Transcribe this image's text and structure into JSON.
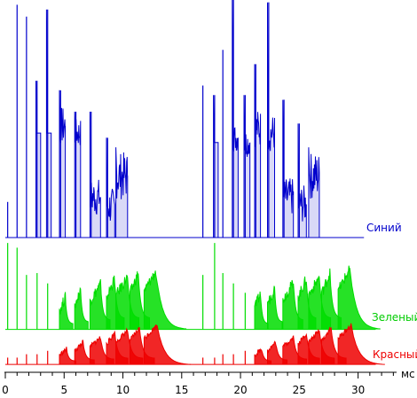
{
  "chart_data": {
    "type": "line",
    "title": "",
    "xlabel": "мс",
    "ylabel": "",
    "xlim": [
      0,
      33.2
    ],
    "x_ticks": [
      0,
      5,
      10,
      15,
      20,
      25,
      30
    ],
    "x_tick_labels": [
      "0",
      "5",
      "10",
      "15",
      "20",
      "25",
      "30"
    ],
    "grid": false,
    "legend": "inline-right",
    "series": [
      {
        "name": "Синий",
        "color": "#0000cc",
        "baseline": 0,
        "spikes": [
          {
            "x": 0.2,
            "y": 0.15,
            "w": 0.05
          },
          {
            "x": 1.0,
            "y": 0.98,
            "w": 0.05
          },
          {
            "x": 1.8,
            "y": 0.93,
            "w": 0.05
          },
          {
            "x": 2.7,
            "y": 0.66,
            "w": 0.05
          },
          {
            "x": 3.6,
            "y": 0.96,
            "w": 0.05
          },
          {
            "x": 4.7,
            "y": 0.62,
            "w": 0.05
          },
          {
            "x": 6.0,
            "y": 0.53,
            "w": 0.05
          },
          {
            "x": 7.3,
            "y": 0.53,
            "w": 0.05
          },
          {
            "x": 8.7,
            "y": 0.42,
            "w": 0.05
          },
          {
            "x": 16.8,
            "y": 0.64,
            "w": 0.05
          },
          {
            "x": 17.8,
            "y": 0.6,
            "w": 0.05
          },
          {
            "x": 18.5,
            "y": 0.79,
            "w": 0.05
          },
          {
            "x": 19.4,
            "y": 1.0,
            "w": 0.05
          },
          {
            "x": 20.4,
            "y": 0.6,
            "w": 0.05
          },
          {
            "x": 21.3,
            "y": 0.73,
            "w": 0.05
          },
          {
            "x": 22.4,
            "y": 0.99,
            "w": 0.05
          },
          {
            "x": 23.7,
            "y": 0.58,
            "w": 0.05
          },
          {
            "x": 25.0,
            "y": 0.48,
            "w": 0.05
          }
        ],
        "pulses": [
          {
            "x0": 2.6,
            "x1": 3.0,
            "level": 0.44,
            "jitter": 0.0,
            "peak": 0.66
          },
          {
            "x0": 3.5,
            "x1": 3.9,
            "level": 0.44,
            "jitter": 0.0,
            "peak": 0.96
          },
          {
            "x0": 4.6,
            "x1": 5.1,
            "level": 0.47,
            "jitter": 0.08,
            "peak": 0.62
          },
          {
            "x0": 5.9,
            "x1": 6.4,
            "level": 0.44,
            "jitter": 0.06,
            "peak": 0.53
          },
          {
            "x0": 7.2,
            "x1": 8.1,
            "level": 0.17,
            "jitter": 0.08,
            "peak": 0.53
          },
          {
            "x0": 8.6,
            "x1": 9.3,
            "level": 0.13,
            "jitter": 0.08,
            "peak": 0.42
          },
          {
            "x0": 9.4,
            "x1": 10.4,
            "level": 0.26,
            "jitter": 0.1,
            "peak": 0.38
          },
          {
            "x0": 17.7,
            "x1": 18.1,
            "level": 0.4,
            "jitter": 0.0,
            "peak": 0.6
          },
          {
            "x0": 19.3,
            "x1": 19.8,
            "level": 0.42,
            "jitter": 0.06,
            "peak": 1.0
          },
          {
            "x0": 20.3,
            "x1": 20.8,
            "level": 0.4,
            "jitter": 0.06,
            "peak": 0.6
          },
          {
            "x0": 21.2,
            "x1": 21.7,
            "level": 0.46,
            "jitter": 0.08,
            "peak": 0.73
          },
          {
            "x0": 22.3,
            "x1": 22.9,
            "level": 0.44,
            "jitter": 0.08,
            "peak": 0.99
          },
          {
            "x0": 23.6,
            "x1": 24.5,
            "level": 0.17,
            "jitter": 0.08,
            "peak": 0.58
          },
          {
            "x0": 24.9,
            "x1": 25.6,
            "level": 0.14,
            "jitter": 0.08,
            "peak": 0.48
          },
          {
            "x0": 25.8,
            "x1": 26.7,
            "level": 0.26,
            "jitter": 0.1,
            "peak": 0.38
          }
        ]
      },
      {
        "name": "Зеленый",
        "color": "#00dd00",
        "baseline": 0.06,
        "spikes": [
          {
            "x": 0.2,
            "y": 0.98,
            "w": 0.04
          },
          {
            "x": 1.0,
            "y": 0.93,
            "w": 0.04
          },
          {
            "x": 1.8,
            "y": 0.64,
            "w": 0.04
          },
          {
            "x": 2.7,
            "y": 0.66,
            "w": 0.04
          },
          {
            "x": 3.6,
            "y": 0.55,
            "w": 0.04
          },
          {
            "x": 16.8,
            "y": 0.64,
            "w": 0.04
          },
          {
            "x": 17.8,
            "y": 0.98,
            "w": 0.04
          },
          {
            "x": 18.5,
            "y": 0.66,
            "w": 0.04
          },
          {
            "x": 19.4,
            "y": 0.55,
            "w": 0.04
          },
          {
            "x": 20.4,
            "y": 0.45,
            "w": 0.04
          }
        ],
        "pulses": [
          {
            "x0": 4.6,
            "x1": 5.1,
            "level": 0.4,
            "decay_to": 0.12,
            "tau": 0.4
          },
          {
            "x0": 5.9,
            "x1": 6.4,
            "level": 0.48,
            "decay_to": 0.14,
            "tau": 0.4
          },
          {
            "x0": 7.2,
            "x1": 8.1,
            "level": 0.54,
            "decay_to": 0.16,
            "tau": 0.5
          },
          {
            "x0": 8.6,
            "x1": 9.3,
            "level": 0.6,
            "decay_to": 0.18,
            "tau": 0.5
          },
          {
            "x0": 9.4,
            "x1": 10.4,
            "level": 0.62,
            "decay_to": 0.18,
            "tau": 0.6
          },
          {
            "x0": 10.6,
            "x1": 11.3,
            "level": 0.66,
            "decay_to": 0.18,
            "tau": 0.6
          },
          {
            "x0": 11.8,
            "x1": 12.8,
            "level": 0.68,
            "decay_to": 0.06,
            "tau": 1.6
          },
          {
            "x0": 21.2,
            "x1": 21.7,
            "level": 0.44,
            "decay_to": 0.12,
            "tau": 0.4
          },
          {
            "x0": 22.3,
            "x1": 22.9,
            "level": 0.5,
            "decay_to": 0.14,
            "tau": 0.4
          },
          {
            "x0": 23.6,
            "x1": 24.5,
            "level": 0.56,
            "decay_to": 0.16,
            "tau": 0.5
          },
          {
            "x0": 24.9,
            "x1": 25.6,
            "level": 0.6,
            "decay_to": 0.18,
            "tau": 0.5
          },
          {
            "x0": 25.8,
            "x1": 26.7,
            "level": 0.62,
            "decay_to": 0.18,
            "tau": 0.6
          },
          {
            "x0": 26.9,
            "x1": 27.6,
            "level": 0.66,
            "decay_to": 0.18,
            "tau": 0.6
          },
          {
            "x0": 28.3,
            "x1": 29.3,
            "level": 0.7,
            "decay_to": 0.06,
            "tau": 1.6
          }
        ]
      },
      {
        "name": "Красный",
        "color": "#ee0000",
        "baseline": 0.06,
        "spikes": [
          {
            "x": 0.2,
            "y": 0.22,
            "w": 0.04
          },
          {
            "x": 1.0,
            "y": 0.22,
            "w": 0.04
          },
          {
            "x": 1.8,
            "y": 0.3,
            "w": 0.04
          },
          {
            "x": 2.7,
            "y": 0.3,
            "w": 0.04
          },
          {
            "x": 3.6,
            "y": 0.38,
            "w": 0.04
          },
          {
            "x": 16.8,
            "y": 0.22,
            "w": 0.04
          },
          {
            "x": 17.8,
            "y": 0.22,
            "w": 0.04
          },
          {
            "x": 18.5,
            "y": 0.3,
            "w": 0.04
          },
          {
            "x": 19.4,
            "y": 0.3,
            "w": 0.04
          },
          {
            "x": 20.4,
            "y": 0.38,
            "w": 0.04
          }
        ],
        "pulses": [
          {
            "x0": 4.6,
            "x1": 5.2,
            "level": 0.42,
            "decay_to": 0.14,
            "tau": 0.5
          },
          {
            "x0": 5.9,
            "x1": 6.6,
            "level": 0.58,
            "decay_to": 0.16,
            "tau": 0.6
          },
          {
            "x0": 7.2,
            "x1": 8.1,
            "level": 0.7,
            "decay_to": 0.18,
            "tau": 0.7
          },
          {
            "x0": 8.6,
            "x1": 9.3,
            "level": 0.8,
            "decay_to": 0.2,
            "tau": 0.7
          },
          {
            "x0": 9.4,
            "x1": 10.4,
            "level": 0.86,
            "decay_to": 0.2,
            "tau": 0.8
          },
          {
            "x0": 10.6,
            "x1": 11.4,
            "level": 0.92,
            "decay_to": 0.2,
            "tau": 0.8
          },
          {
            "x0": 11.8,
            "x1": 12.9,
            "level": 0.98,
            "decay_to": 0.05,
            "tau": 1.8
          },
          {
            "x0": 21.2,
            "x1": 21.8,
            "level": 0.42,
            "decay_to": 0.14,
            "tau": 0.5
          },
          {
            "x0": 22.3,
            "x1": 23.0,
            "level": 0.58,
            "decay_to": 0.16,
            "tau": 0.6
          },
          {
            "x0": 23.6,
            "x1": 24.5,
            "level": 0.7,
            "decay_to": 0.18,
            "tau": 0.7
          },
          {
            "x0": 24.9,
            "x1": 25.6,
            "level": 0.8,
            "decay_to": 0.2,
            "tau": 0.7
          },
          {
            "x0": 25.8,
            "x1": 26.7,
            "level": 0.86,
            "decay_to": 0.2,
            "tau": 0.8
          },
          {
            "x0": 26.9,
            "x1": 27.7,
            "level": 0.92,
            "decay_to": 0.2,
            "tau": 0.8
          },
          {
            "x0": 28.3,
            "x1": 29.4,
            "level": 0.98,
            "decay_to": 0.05,
            "tau": 1.8
          }
        ]
      }
    ]
  }
}
